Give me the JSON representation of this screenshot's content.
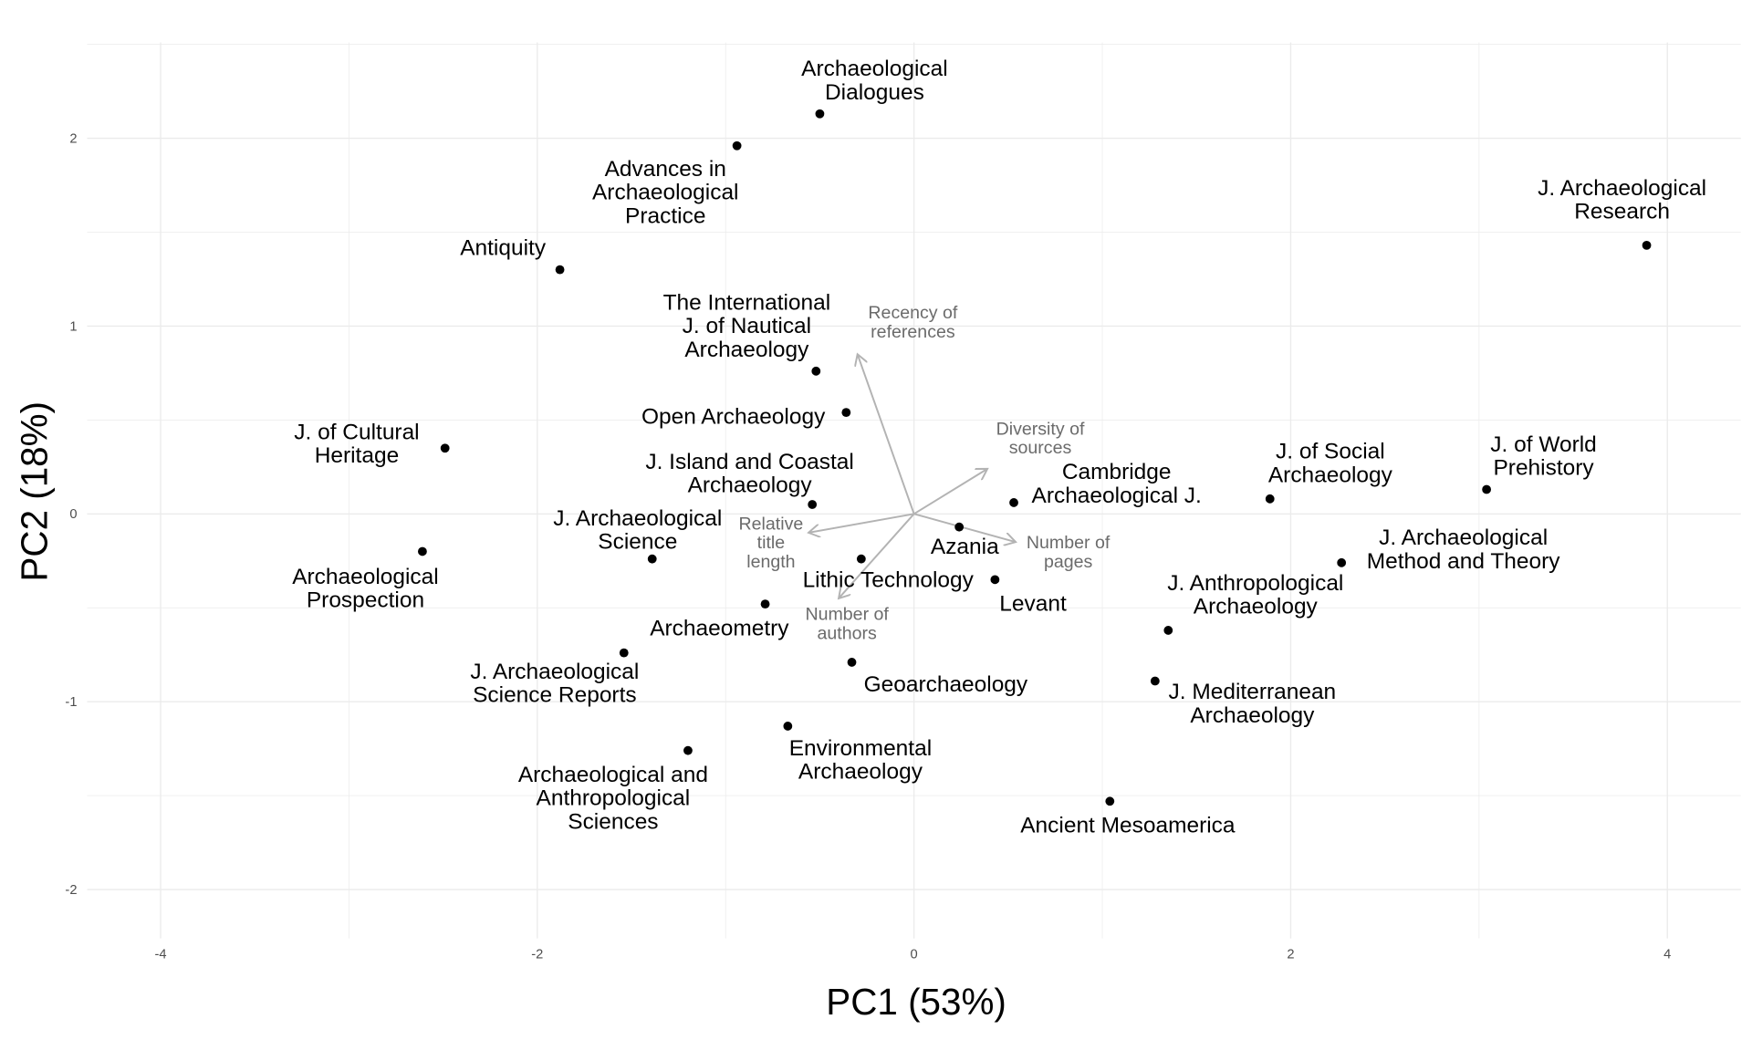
{
  "chart_data": {
    "type": "scatter",
    "subtype": "pca-biplot",
    "title": "",
    "xlabel": "PC1 (53%)",
    "ylabel": "PC2 (18%)",
    "xlim": [
      -4.39,
      4.39
    ],
    "ylim": [
      -2.26,
      2.51
    ],
    "xticks": [
      -4,
      -2,
      0,
      2,
      4
    ],
    "yticks": [
      -2,
      -1,
      0,
      1,
      2
    ],
    "grid": true,
    "point_color": "#000000",
    "arrow_color": "#b3b3b3",
    "arrow_label_color": "#6b6b6b",
    "points": [
      {
        "label": [
          "Archaeological",
          "Dialogues"
        ],
        "x": -0.5,
        "y": 2.13
      },
      {
        "label": [
          "Advances in",
          "Archaeological",
          "Practice"
        ],
        "x": -0.94,
        "y": 1.96
      },
      {
        "label": [
          "Antiquity"
        ],
        "x": -1.88,
        "y": 1.3
      },
      {
        "label": [
          "J. Archaeological",
          "Research"
        ],
        "x": 3.89,
        "y": 1.43
      },
      {
        "label": [
          "The International",
          "J. of Nautical",
          "Archaeology"
        ],
        "x": -0.52,
        "y": 0.76
      },
      {
        "label": [
          "Open Archaeology"
        ],
        "x": -0.36,
        "y": 0.54
      },
      {
        "label": [
          "J. of Cultural",
          "Heritage"
        ],
        "x": -2.49,
        "y": 0.35
      },
      {
        "label": [
          "J. Island and Coastal",
          "Archaeology"
        ],
        "x": -0.54,
        "y": 0.05
      },
      {
        "label": [
          "Cambridge",
          "Archaeological J."
        ],
        "x": 0.53,
        "y": 0.06
      },
      {
        "label": [
          "J. of Social",
          "Archaeology"
        ],
        "x": 1.89,
        "y": 0.08
      },
      {
        "label": [
          "J. of World",
          "Prehistory"
        ],
        "x": 3.04,
        "y": 0.13
      },
      {
        "label": [
          "Azania"
        ],
        "x": 0.24,
        "y": -0.07
      },
      {
        "label": [
          "Archaeological",
          "Prospection"
        ],
        "x": -2.61,
        "y": -0.2
      },
      {
        "label": [
          "J. Archaeological",
          "Science"
        ],
        "x": -1.39,
        "y": -0.24
      },
      {
        "label": [
          "Lithic Technology"
        ],
        "x": -0.28,
        "y": -0.24
      },
      {
        "label": [
          "J. Archaeological",
          "Method and Theory"
        ],
        "x": 2.27,
        "y": -0.26
      },
      {
        "label": [
          "Levant"
        ],
        "x": 0.43,
        "y": -0.35
      },
      {
        "label": [
          "Archaeometry"
        ],
        "x": -0.79,
        "y": -0.48
      },
      {
        "label": [
          "J. Anthropological",
          "Archaeology"
        ],
        "x": 1.35,
        "y": -0.62
      },
      {
        "label": [
          "J. Archaeological",
          "Science Reports"
        ],
        "x": -1.54,
        "y": -0.74
      },
      {
        "label": [
          "Geoarchaeology"
        ],
        "x": -0.33,
        "y": -0.79
      },
      {
        "label": [
          "J. Mediterranean",
          "Archaeology"
        ],
        "x": 1.28,
        "y": -0.89
      },
      {
        "label": [
          "Environmental",
          "Archaeology"
        ],
        "x": -0.67,
        "y": -1.13
      },
      {
        "label": [
          "Archaeological and",
          "Anthropological",
          "Sciences"
        ],
        "x": -1.2,
        "y": -1.26
      },
      {
        "label": [
          "Ancient Mesoamerica"
        ],
        "x": 1.04,
        "y": -1.53
      }
    ],
    "loadings": [
      {
        "label": [
          "Recency of",
          "references"
        ],
        "x": -0.3,
        "y": 0.85
      },
      {
        "label": [
          "Diversity of",
          "sources"
        ],
        "x": 0.39,
        "y": 0.24
      },
      {
        "label": [
          "Number of",
          "pages"
        ],
        "x": 0.54,
        "y": -0.15
      },
      {
        "label": [
          "Relative",
          "title",
          "length"
        ],
        "x": -0.56,
        "y": -0.1
      },
      {
        "label": [
          "Number of",
          "authors"
        ],
        "x": -0.4,
        "y": -0.45
      }
    ]
  }
}
